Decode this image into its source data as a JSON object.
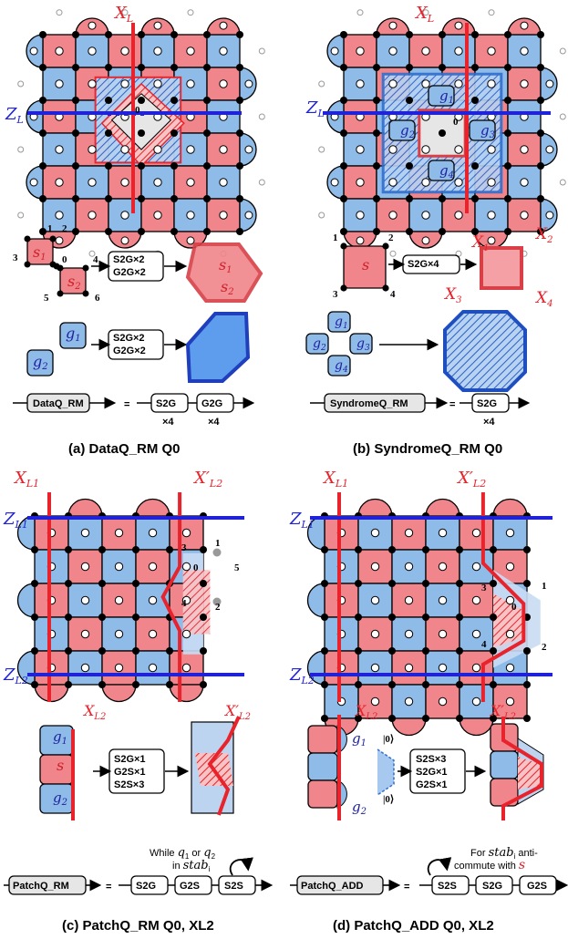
{
  "colors": {
    "red": "#f0868b",
    "blue": "#8fbbe9",
    "red_line": "#e8232b",
    "blue_line": "#1f22d8",
    "grey": "#e6e6e6"
  },
  "panel_a": {
    "caption": "(a) DataQ_RM Q0",
    "xl": "X",
    "xl_sub": "L",
    "zl": "Z",
    "zl_sub": "L",
    "center": "0",
    "nums": [
      "1",
      "2",
      "3",
      "0",
      "4",
      "5",
      "6"
    ],
    "s1": "s",
    "s1_sub": "1",
    "s2": "s",
    "s2_sub": "2",
    "g1": "g",
    "g1_sub": "1",
    "g2": "g",
    "g2_sub": "2",
    "op1a": "S2G×2",
    "op1b": "G2G×2",
    "op2a": "S2G×2",
    "op2b": "G2G×2",
    "formula_name": "DataQ_RM",
    "eq": "=",
    "f1": "S2G",
    "f2": "G2G",
    "x1": "×4",
    "x2": "×4"
  },
  "panel_b": {
    "caption": "(b) SyndromeQ_RM Q0",
    "xl": "X",
    "xl_sub": "L",
    "zl": "Z",
    "zl_sub": "L",
    "center": "0",
    "g1": "g",
    "g1_sub": "1",
    "g2": "g",
    "g2_sub": "2",
    "g3": "g",
    "g3_sub": "3",
    "g4": "g",
    "g4_sub": "4",
    "nums": [
      "1",
      "2",
      "3",
      "4"
    ],
    "s": "s",
    "op": "S2G×4",
    "X1": "X",
    "X1_sub": "1",
    "X2": "X",
    "X2_sub": "2",
    "X3": "X",
    "X3_sub": "3",
    "X4": "X",
    "X4_sub": "4",
    "formula_name": "SyndromeQ_RM",
    "eq": "=",
    "f1": "S2G",
    "x1": "×4"
  },
  "panel_c": {
    "caption": "(c) PatchQ_RM Q0, XL2",
    "xl1": "X",
    "xl1_sub": "L1",
    "xl2": "X′",
    "xl2_sub": "L2",
    "zl1": "Z",
    "zl1_sub": "L1",
    "zl2": "Z",
    "zl2_sub": "L2",
    "nums": [
      "3",
      "1",
      "0",
      "5",
      "4",
      "2"
    ],
    "small_xl2": "X",
    "small_xl2_sub": "L2",
    "small_xl2p": "X′",
    "small_xl2p_sub": "L2",
    "g1": "g",
    "g1_sub": "1",
    "s": "s",
    "g2": "g",
    "g2_sub": "2",
    "op1": "S2G×1",
    "op2": "G2S×1",
    "op3": "S2S×3",
    "note1": "While ",
    "note_q1": "q",
    "note_q1_sub": "1",
    "note_or": " or ",
    "note_q2": "q",
    "note_q2_sub": "2",
    "note2": "in ",
    "note_stab": "stab",
    "note_stab_sub": "i",
    "formula_name": "PatchQ_RM",
    "eq": "=",
    "f1": "S2G",
    "f2": "G2S",
    "f3": "S2S"
  },
  "panel_d": {
    "caption": "(d) PatchQ_ADD Q0, XL2",
    "xl1": "X",
    "xl1_sub": "L1",
    "xl2": "X′",
    "xl2_sub": "L2",
    "zl1": "Z",
    "zl1_sub": "L1",
    "zl2": "Z",
    "zl2_sub": "L2",
    "nums": [
      "1",
      "3",
      "0",
      "4",
      "2"
    ],
    "small_xl2": "X",
    "small_xl2_sub": "L2",
    "small_xl2p": "X′",
    "small_xl2p_sub": "L2",
    "g1": "g",
    "g1_sub": "1",
    "g2": "g",
    "g2_sub": "2",
    "ket": "|0⟩",
    "op1": "S2S×3",
    "op2": "S2G×1",
    "op3": "G2S×1",
    "note1": "For ",
    "note_stab": "stab",
    "note_stab_sub": "i",
    "note_anti": " anti-",
    "note2": "commute with ",
    "note_s": "s",
    "formula_name": "PatchQ_ADD",
    "eq": "=",
    "f1": "S2S",
    "f2": "S2G",
    "f3": "G2S"
  }
}
